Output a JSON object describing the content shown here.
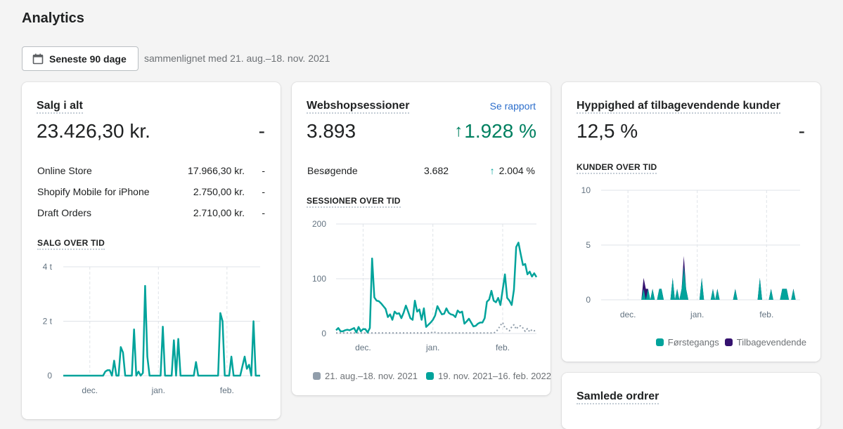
{
  "page_title": "Analytics",
  "date_filter": {
    "label": "Seneste 90 dage",
    "icon": "calendar-icon",
    "comparison": "sammenlignet med 21. aug.–18. nov. 2021"
  },
  "colors": {
    "primary_series": "#00a39b",
    "previous_series": "#919eab",
    "returning": "#35126f",
    "positive": "#008060",
    "link": "#2c6ecb"
  },
  "sales": {
    "title": "Salg i alt",
    "total": "23.426,30 kr.",
    "change": "-",
    "channels": [
      {
        "name": "Online Store",
        "value": "17.966,30 kr.",
        "change": "-"
      },
      {
        "name": "Shopify Mobile for iPhone",
        "value": "2.750,00 kr.",
        "change": "-"
      },
      {
        "name": "Draft Orders",
        "value": "2.710,00 kr.",
        "change": "-"
      }
    ],
    "chart_title": "SALG OVER TID"
  },
  "sessions": {
    "title": "Webshopsessioner",
    "report_link": "Se rapport",
    "total": "3.893",
    "change": "1.928 %",
    "visitors": {
      "label": "Besøgende",
      "value": "3.682",
      "change": "2.004 %"
    },
    "chart_title": "SESSIONER OVER TID"
  },
  "returning": {
    "title": "Hyppighed af tilbagevendende kunder",
    "value": "12,5 %",
    "change": "-",
    "chart_title": "KUNDER OVER TID"
  },
  "orders": {
    "title": "Samlede ordrer"
  },
  "chart_data": [
    {
      "type": "line",
      "x_range": [
        "19. nov. 2021",
        "16. feb. 2022"
      ],
      "xticks": [
        "dec.",
        "jan.",
        "feb."
      ],
      "yticks": [
        "0",
        "2 t",
        "4 t"
      ],
      "ylim": [
        0,
        4
      ],
      "grid": true,
      "series": [
        {
          "values": [
            0,
            0,
            0,
            0,
            0,
            0,
            0,
            0,
            0,
            0,
            0,
            0,
            0,
            0,
            0,
            0,
            0,
            0,
            0,
            0.15,
            0.2,
            0.2,
            0,
            0.55,
            0,
            0,
            1.05,
            0.85,
            0,
            0,
            0,
            0,
            1.7,
            0,
            0.15,
            0,
            0.1,
            3.3,
            0.7,
            0,
            0,
            0,
            0,
            0,
            0,
            1.8,
            0,
            0,
            0,
            0,
            1.3,
            0,
            1.35,
            0,
            0,
            0,
            0,
            0,
            0,
            0,
            0.5,
            0,
            0,
            0,
            0,
            0,
            0,
            0,
            0,
            0,
            0,
            2.3,
            2.0,
            0,
            0,
            0,
            0.7,
            0,
            0,
            0,
            0,
            0.35,
            0.7,
            0.25,
            0.4,
            0,
            2.0,
            0,
            0,
            0
          ]
        }
      ]
    },
    {
      "type": "line",
      "xticks": [
        "dec.",
        "jan.",
        "feb."
      ],
      "yticks": [
        "0",
        "100",
        "200"
      ],
      "ylim": [
        0,
        200
      ],
      "grid": true,
      "legend": "bottom",
      "series": [
        {
          "name": "21. aug.–18. nov. 2021",
          "style": "dotted",
          "values": [
            1,
            1,
            1,
            1,
            1,
            1,
            1,
            1,
            1,
            1,
            1,
            1,
            1,
            1,
            1,
            1,
            1,
            1,
            1,
            1,
            1,
            1,
            1,
            1,
            1,
            1,
            1,
            1,
            1,
            1,
            1,
            1,
            1,
            1,
            1,
            1,
            1,
            1,
            1,
            1,
            1,
            1,
            1,
            3,
            2,
            1,
            1,
            1,
            1,
            1,
            1,
            1,
            1,
            1,
            1,
            1,
            1,
            1,
            1,
            1,
            1,
            1,
            1,
            1,
            1,
            1,
            1,
            1,
            1,
            1,
            1,
            3,
            8,
            15,
            20,
            10,
            8,
            5,
            12,
            16,
            8,
            13,
            14,
            10,
            4,
            9,
            3,
            7,
            5,
            6
          ]
        },
        {
          "name": "19. nov. 2021–16. feb. 2022",
          "values": [
            6,
            10,
            4,
            4,
            6,
            7,
            6,
            8,
            10,
            2,
            12,
            4,
            8,
            8,
            2,
            10,
            137,
            66,
            60,
            59,
            55,
            50,
            45,
            30,
            35,
            25,
            40,
            36,
            37,
            28,
            38,
            51,
            40,
            28,
            25,
            60,
            40,
            44,
            25,
            46,
            12,
            16,
            20,
            25,
            33,
            50,
            42,
            35,
            36,
            46,
            38,
            35,
            34,
            30,
            42,
            38,
            40,
            18,
            22,
            27,
            20,
            13,
            14,
            18,
            20,
            20,
            28,
            58,
            62,
            78,
            60,
            57,
            65,
            52,
            80,
            108,
            65,
            60,
            52,
            80,
            158,
            166,
            145,
            125,
            127,
            108,
            113,
            104,
            110,
            103
          ]
        }
      ]
    },
    {
      "type": "area",
      "stacked": true,
      "xticks": [
        "dec.",
        "jan.",
        "feb."
      ],
      "yticks": [
        "0",
        "5",
        "10"
      ],
      "ylim": [
        0,
        10
      ],
      "grid": true,
      "legend": "bottom-right",
      "series": [
        {
          "name": "Førstegangs",
          "values": [
            0,
            0,
            0,
            0,
            0,
            0,
            0,
            0,
            0,
            0,
            0,
            0,
            0,
            0,
            0,
            0,
            0,
            0,
            0,
            1,
            0,
            1,
            0,
            1,
            0,
            0,
            1,
            1,
            0,
            0,
            0,
            0,
            2,
            0,
            1,
            0,
            1,
            3,
            1,
            0,
            0,
            0,
            0,
            0,
            0,
            2,
            0,
            0,
            0,
            0,
            1,
            0,
            1,
            0,
            0,
            0,
            0,
            0,
            0,
            0,
            1,
            0,
            0,
            0,
            0,
            0,
            0,
            0,
            0,
            0,
            0,
            2,
            0,
            0,
            0,
            0,
            1,
            0,
            0,
            0,
            0,
            1,
            1,
            1,
            0,
            0,
            1,
            0,
            0,
            0
          ]
        },
        {
          "name": "Tilbagevendende",
          "values": [
            0,
            0,
            0,
            0,
            0,
            0,
            0,
            0,
            0,
            0,
            0,
            0,
            0,
            0,
            0,
            0,
            0,
            0,
            0,
            1,
            1,
            0,
            0,
            0,
            0,
            0,
            0,
            0,
            0,
            0,
            0,
            0,
            0,
            0,
            0,
            0,
            0,
            1,
            0,
            0,
            0,
            0,
            0,
            0,
            0,
            0,
            0,
            0,
            0,
            0,
            0,
            0,
            0,
            0,
            0,
            0,
            0,
            0,
            0,
            0,
            0,
            0,
            0,
            0,
            0,
            0,
            0,
            0,
            0,
            0,
            0,
            0,
            0,
            0,
            0,
            0,
            0,
            0,
            0,
            0,
            0,
            0,
            0,
            0,
            0,
            0,
            0,
            0,
            0,
            0
          ]
        }
      ]
    }
  ]
}
